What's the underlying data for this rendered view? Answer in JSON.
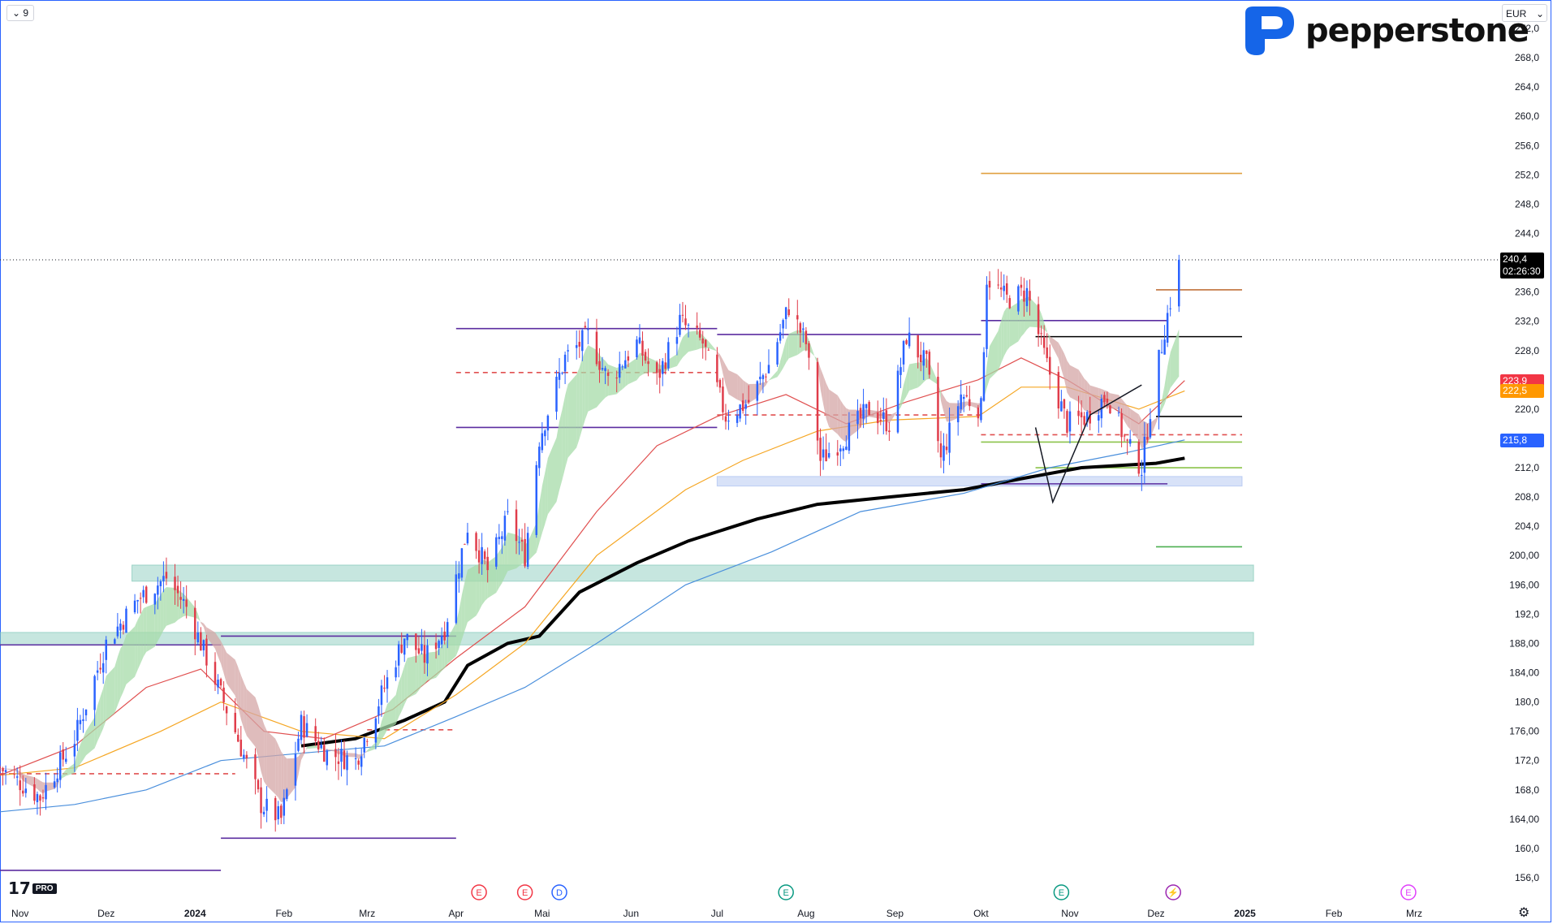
{
  "toolbar": {
    "interval": "9",
    "currency": "EUR"
  },
  "brand": {
    "name": "pepperstone"
  },
  "watermark": {
    "mark": "17",
    "badge": "PRO"
  },
  "last_price": {
    "value": "240,4",
    "countdown": "02:26:30"
  },
  "price_tags": [
    {
      "value": "223,9",
      "color": "#f23645"
    },
    {
      "value": "222,5",
      "color": "#ff9800"
    },
    {
      "value": "215,8",
      "color": "#2962ff"
    }
  ],
  "events": [
    {
      "letter": "E",
      "color": "#f23645",
      "date": "2024-04-09"
    },
    {
      "letter": "E",
      "color": "#f23645",
      "date": "2024-04-25"
    },
    {
      "letter": "D",
      "color": "#2962ff",
      "date": "2024-05-07"
    },
    {
      "letter": "E",
      "color": "#089981",
      "date": "2024-07-25"
    },
    {
      "letter": "E",
      "color": "#089981",
      "date": "2024-10-29"
    },
    {
      "letter": "⚡",
      "color": "#9c27b0",
      "date": "2024-12-07"
    },
    {
      "letter": "E",
      "color": "#e040fb",
      "date": "2025-02-27"
    }
  ],
  "chart_data": {
    "type": "candlestick",
    "x_axis": {
      "start": "2023-10-25",
      "end": "2025-03-31",
      "ticks": [
        {
          "date": "2023-11-01",
          "label": "Nov"
        },
        {
          "date": "2023-12-01",
          "label": "Dez"
        },
        {
          "date": "2024-01-01",
          "label": "2024"
        },
        {
          "date": "2024-02-01",
          "label": "Feb"
        },
        {
          "date": "2024-03-01",
          "label": "Mrz"
        },
        {
          "date": "2024-04-01",
          "label": "Apr"
        },
        {
          "date": "2024-05-01",
          "label": "Mai"
        },
        {
          "date": "2024-06-01",
          "label": "Jun"
        },
        {
          "date": "2024-07-01",
          "label": "Jul"
        },
        {
          "date": "2024-08-01",
          "label": "Aug"
        },
        {
          "date": "2024-09-01",
          "label": "Sep"
        },
        {
          "date": "2024-10-01",
          "label": "Okt"
        },
        {
          "date": "2024-11-01",
          "label": "Nov"
        },
        {
          "date": "2024-12-01",
          "label": "Dez"
        },
        {
          "date": "2025-01-01",
          "label": "2025"
        },
        {
          "date": "2025-02-01",
          "label": "Feb"
        },
        {
          "date": "2025-03-01",
          "label": "Mrz"
        }
      ]
    },
    "y_axis": {
      "ylim": [
        155,
        274
      ],
      "ticks": [
        "156,0",
        "160,0",
        "164,00",
        "168,0",
        "172,0",
        "176,00",
        "180,0",
        "184,00",
        "188,00",
        "192,0",
        "196,00",
        "200,00",
        "204,0",
        "208,0",
        "212,0",
        "216,0",
        "220,0",
        "224,0",
        "228,0",
        "232,0",
        "236,0",
        "240,0",
        "244,0",
        "248,0",
        "252,0",
        "256,0",
        "260,0",
        "264,0",
        "268,0",
        "272,0"
      ]
    },
    "price_anchors": [
      [
        "2023-10-25",
        171
      ],
      [
        "2023-11-08",
        167
      ],
      [
        "2023-11-20",
        175
      ],
      [
        "2023-12-01",
        188
      ],
      [
        "2023-12-12",
        194
      ],
      [
        "2023-12-22",
        197
      ],
      [
        "2023-12-29",
        193
      ],
      [
        "2024-01-05",
        186
      ],
      [
        "2024-01-15",
        176
      ],
      [
        "2024-01-24",
        166
      ],
      [
        "2024-01-31",
        164
      ],
      [
        "2024-02-07",
        177
      ],
      [
        "2024-02-16",
        173
      ],
      [
        "2024-02-26",
        172
      ],
      [
        "2024-03-05",
        180
      ],
      [
        "2024-03-14",
        189
      ],
      [
        "2024-03-21",
        186
      ],
      [
        "2024-03-28",
        190
      ],
      [
        "2024-04-05",
        204
      ],
      [
        "2024-04-12",
        198
      ],
      [
        "2024-04-19",
        205
      ],
      [
        "2024-04-25",
        200
      ],
      [
        "2024-04-30",
        216
      ],
      [
        "2024-05-09",
        227
      ],
      [
        "2024-05-17",
        230
      ],
      [
        "2024-05-24",
        224
      ],
      [
        "2024-06-03",
        229
      ],
      [
        "2024-06-10",
        224
      ],
      [
        "2024-06-18",
        232
      ],
      [
        "2024-06-26",
        229
      ],
      [
        "2024-07-04",
        219
      ],
      [
        "2024-07-12",
        221
      ],
      [
        "2024-07-19",
        226
      ],
      [
        "2024-07-26",
        234
      ],
      [
        "2024-08-01",
        229
      ],
      [
        "2024-08-06",
        213
      ],
      [
        "2024-08-14",
        216
      ],
      [
        "2024-08-23",
        220
      ],
      [
        "2024-08-30",
        218
      ],
      [
        "2024-09-05",
        230
      ],
      [
        "2024-09-12",
        226
      ],
      [
        "2024-09-17",
        213
      ],
      [
        "2024-09-24",
        222
      ],
      [
        "2024-10-01",
        220
      ],
      [
        "2024-10-03",
        238
      ],
      [
        "2024-10-10",
        235
      ],
      [
        "2024-10-17",
        236
      ],
      [
        "2024-10-24",
        226
      ],
      [
        "2024-10-31",
        218
      ],
      [
        "2024-11-07",
        219
      ],
      [
        "2024-11-14",
        222
      ],
      [
        "2024-11-21",
        215
      ],
      [
        "2024-11-26",
        212
      ],
      [
        "2024-11-29",
        220
      ],
      [
        "2024-12-04",
        231
      ],
      [
        "2024-12-09",
        240.4
      ]
    ],
    "series": [
      {
        "color": "#000000",
        "width": 4,
        "points": [
          [
            "2024-02-07",
            174
          ],
          [
            "2024-02-26",
            175
          ],
          [
            "2024-03-14",
            177.5
          ],
          [
            "2024-03-28",
            180
          ],
          [
            "2024-04-05",
            185
          ],
          [
            "2024-04-19",
            188
          ],
          [
            "2024-04-30",
            189
          ],
          [
            "2024-05-14",
            195
          ],
          [
            "2024-06-03",
            199
          ],
          [
            "2024-06-21",
            202
          ],
          [
            "2024-07-15",
            205
          ],
          [
            "2024-08-05",
            207
          ],
          [
            "2024-08-30",
            208
          ],
          [
            "2024-09-25",
            209
          ],
          [
            "2024-10-15",
            210.5
          ],
          [
            "2024-11-05",
            212
          ],
          [
            "2024-12-01",
            212.6
          ],
          [
            "2024-12-11",
            213.3
          ]
        ]
      },
      {
        "color": "#4a8fdc",
        "width": 1.2,
        "points": [
          [
            "2023-10-25",
            165
          ],
          [
            "2023-11-20",
            166
          ],
          [
            "2023-12-15",
            168
          ],
          [
            "2024-01-10",
            172
          ],
          [
            "2024-02-07",
            173
          ],
          [
            "2024-03-07",
            174
          ],
          [
            "2024-04-01",
            178
          ],
          [
            "2024-04-25",
            182
          ],
          [
            "2024-05-20",
            188
          ],
          [
            "2024-06-20",
            196
          ],
          [
            "2024-07-20",
            200.5
          ],
          [
            "2024-08-20",
            206
          ],
          [
            "2024-09-25",
            208.5
          ],
          [
            "2024-10-25",
            212
          ],
          [
            "2024-11-20",
            214
          ],
          [
            "2024-12-11",
            215.8
          ]
        ]
      },
      {
        "color": "#f5a623",
        "width": 1.2,
        "points": [
          [
            "2023-10-25",
            170
          ],
          [
            "2023-11-20",
            171
          ],
          [
            "2023-12-20",
            176
          ],
          [
            "2024-01-10",
            180
          ],
          [
            "2024-02-07",
            176
          ],
          [
            "2024-03-07",
            175
          ],
          [
            "2024-04-01",
            181
          ],
          [
            "2024-04-25",
            188
          ],
          [
            "2024-05-20",
            200
          ],
          [
            "2024-06-20",
            209
          ],
          [
            "2024-07-10",
            213
          ],
          [
            "2024-08-05",
            217
          ],
          [
            "2024-08-30",
            218.5
          ],
          [
            "2024-09-30",
            219
          ],
          [
            "2024-10-15",
            223
          ],
          [
            "2024-10-31",
            223
          ],
          [
            "2024-11-25",
            220
          ],
          [
            "2024-12-11",
            222.5
          ]
        ]
      },
      {
        "color": "#e05050",
        "width": 1.2,
        "points": [
          [
            "2023-10-25",
            170
          ],
          [
            "2023-11-20",
            174
          ],
          [
            "2023-12-15",
            182
          ],
          [
            "2024-01-03",
            184.5
          ],
          [
            "2024-01-25",
            176
          ],
          [
            "2024-02-15",
            175
          ],
          [
            "2024-03-10",
            179
          ],
          [
            "2024-04-01",
            186
          ],
          [
            "2024-04-25",
            193
          ],
          [
            "2024-05-20",
            206
          ],
          [
            "2024-06-10",
            215
          ],
          [
            "2024-07-01",
            219
          ],
          [
            "2024-07-25",
            222
          ],
          [
            "2024-08-15",
            218
          ],
          [
            "2024-09-05",
            221
          ],
          [
            "2024-09-30",
            224
          ],
          [
            "2024-10-15",
            227
          ],
          [
            "2024-10-31",
            224
          ],
          [
            "2024-11-25",
            218
          ],
          [
            "2024-12-11",
            223.9
          ]
        ]
      }
    ],
    "levels": [
      {
        "price": 252.2,
        "from": "2024-10-01",
        "to": "2024-12-31",
        "color": "#e0a040"
      },
      {
        "price": 236.3,
        "from": "2024-12-01",
        "to": "2024-12-31",
        "color": "#c0703a"
      },
      {
        "price": 229.9,
        "from": "2024-10-20",
        "to": "2024-12-31",
        "color": "#000000"
      },
      {
        "price": 219.0,
        "from": "2024-12-01",
        "to": "2024-12-31",
        "color": "#000000"
      },
      {
        "price": 216.5,
        "from": "2024-10-01",
        "to": "2024-12-31",
        "color": "#e05050",
        "dash": true
      },
      {
        "price": 215.5,
        "from": "2024-10-01",
        "to": "2024-12-31",
        "color": "#8bc34a"
      },
      {
        "price": 212.0,
        "from": "2024-10-20",
        "to": "2024-12-31",
        "color": "#8bc34a"
      },
      {
        "price": 201.2,
        "from": "2024-12-01",
        "to": "2024-12-31",
        "color": "#4caf50"
      },
      {
        "price": 231.0,
        "from": "2024-04-01",
        "to": "2024-07-01",
        "color": "#5b2da0"
      },
      {
        "price": 230.2,
        "from": "2024-07-01",
        "to": "2024-10-01",
        "color": "#5b2da0"
      },
      {
        "price": 232.1,
        "from": "2024-10-01",
        "to": "2024-12-05",
        "color": "#5b2da0"
      },
      {
        "price": 217.5,
        "from": "2024-04-01",
        "to": "2024-07-01",
        "color": "#5b2da0"
      },
      {
        "price": 209.8,
        "from": "2024-10-01",
        "to": "2024-12-05",
        "color": "#5b2da0"
      },
      {
        "price": 225.0,
        "from": "2024-04-01",
        "to": "2024-07-01",
        "color": "#e05050",
        "dash": true
      },
      {
        "price": 219.2,
        "from": "2024-07-01",
        "to": "2024-10-01",
        "color": "#e05050",
        "dash": true
      },
      {
        "price": 176.2,
        "from": "2024-03-01",
        "to": "2024-04-01",
        "color": "#e05050",
        "dash": true
      },
      {
        "price": 170.2,
        "from": "2023-10-25",
        "to": "2024-01-15",
        "color": "#e05050",
        "dash": true
      },
      {
        "price": 189.0,
        "from": "2024-01-10",
        "to": "2024-04-01",
        "color": "#5b2da0"
      },
      {
        "price": 187.8,
        "from": "2023-10-25",
        "to": "2024-01-10",
        "color": "#5b2da0"
      },
      {
        "price": 161.4,
        "from": "2024-01-10",
        "to": "2024-04-01",
        "color": "#5b2da0"
      },
      {
        "price": 157.0,
        "from": "2023-10-25",
        "to": "2024-01-10",
        "color": "#5b2da0"
      }
    ],
    "zones": [
      {
        "from": "2023-12-10",
        "to": "2025-01-04",
        "top": 198.7,
        "bottom": 196.5,
        "color": "#80c7b8"
      },
      {
        "from": "2023-10-25",
        "to": "2025-01-04",
        "top": 189.5,
        "bottom": 187.8,
        "color": "#80c7b8"
      },
      {
        "from": "2024-07-01",
        "to": "2024-12-31",
        "top": 210.8,
        "bottom": 209.5,
        "color": "#a9bff0"
      }
    ],
    "pattern": [
      [
        "2024-10-20",
        217.5
      ],
      [
        "2024-10-26",
        207.3
      ],
      [
        "2024-11-08",
        219.2
      ],
      [
        "2024-11-26",
        223.3
      ]
    ]
  }
}
